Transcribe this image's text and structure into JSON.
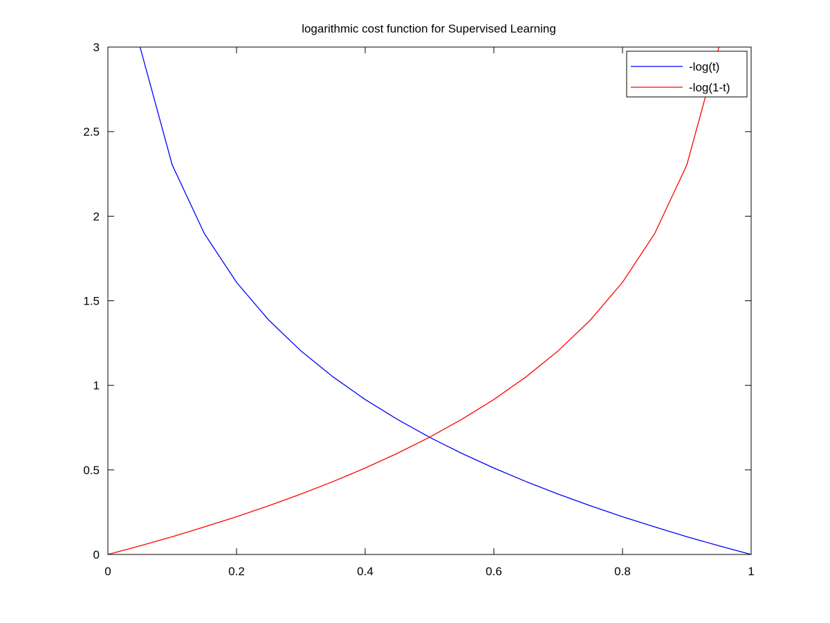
{
  "chart_data": {
    "type": "line",
    "title": "logarithmic cost function for Supervised Learning",
    "xlabel": "",
    "ylabel": "",
    "xlim": [
      0,
      1
    ],
    "ylim": [
      0,
      3
    ],
    "x_ticks": [
      0,
      0.2,
      0.4,
      0.6,
      0.8,
      1
    ],
    "x_tick_labels": [
      "0",
      "0.2",
      "0.4",
      "0.6",
      "0.8",
      "1"
    ],
    "y_ticks": [
      0,
      0.5,
      1,
      1.5,
      2,
      2.5,
      3
    ],
    "y_tick_labels": [
      "0",
      "0.5",
      "1",
      "1.5",
      "2",
      "2.5",
      "3"
    ],
    "grid": false,
    "legend_position": "top-right",
    "x": [
      0,
      0.05,
      0.1,
      0.15,
      0.2,
      0.25,
      0.3,
      0.35,
      0.4,
      0.45,
      0.5,
      0.55,
      0.6,
      0.65,
      0.7,
      0.75,
      0.8,
      0.85,
      0.9,
      0.95,
      1
    ],
    "series": [
      {
        "name": "-log(t)",
        "color": "#0000ff",
        "x": [
          0.05,
          0.1,
          0.15,
          0.2,
          0.25,
          0.3,
          0.35,
          0.4,
          0.45,
          0.5,
          0.55,
          0.6,
          0.65,
          0.7,
          0.75,
          0.8,
          0.85,
          0.9,
          0.95,
          1
        ],
        "values": [
          3.0,
          2.303,
          1.897,
          1.609,
          1.386,
          1.204,
          1.05,
          0.916,
          0.799,
          0.693,
          0.598,
          0.511,
          0.431,
          0.357,
          0.288,
          0.223,
          0.163,
          0.105,
          0.051,
          0
        ]
      },
      {
        "name": "-log(1-t)",
        "color": "#ff0000",
        "x": [
          0,
          0.05,
          0.1,
          0.15,
          0.2,
          0.25,
          0.3,
          0.35,
          0.4,
          0.45,
          0.5,
          0.55,
          0.6,
          0.65,
          0.7,
          0.75,
          0.8,
          0.85,
          0.9,
          0.95
        ],
        "values": [
          0,
          0.051,
          0.105,
          0.163,
          0.223,
          0.288,
          0.357,
          0.431,
          0.511,
          0.598,
          0.693,
          0.799,
          0.916,
          1.05,
          1.204,
          1.386,
          1.609,
          1.897,
          2.303,
          3.0
        ]
      }
    ]
  }
}
